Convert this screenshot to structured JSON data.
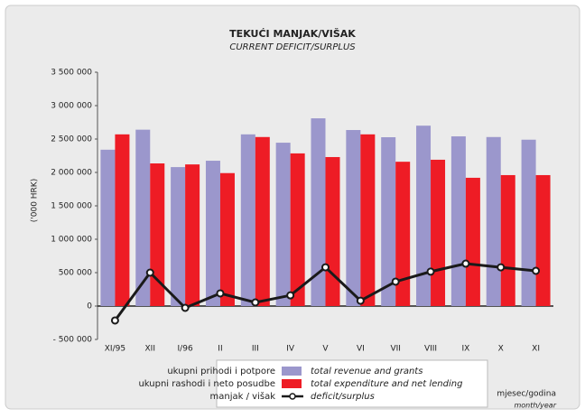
{
  "chart_data": {
    "type": "bar_line",
    "title": "TEKUĆI MANJAK/VIŠAK",
    "subtitle": "CURRENT DEFICIT/SURPLUS",
    "y_label": "('000 HRK)",
    "x_label": "mjesec/godina",
    "x_label_en": "month/year",
    "categories": [
      "XI/95",
      "XII",
      "I/96",
      "II",
      "III",
      "IV",
      "V",
      "VI",
      "VII",
      "VIII",
      "IX",
      "X",
      "XI"
    ],
    "series": [
      {
        "name": "total revenue and grants",
        "label_hr": "ukupni prihodi i potpore",
        "color": "#9b97cc",
        "kind": "bar",
        "values": [
          2340000,
          2640000,
          2080000,
          2175000,
          2570000,
          2445000,
          2810000,
          2635000,
          2527000,
          2700000,
          2540000,
          2530000,
          2490000
        ]
      },
      {
        "name": "total expenditure and net lending",
        "label_hr": "ukupni rashodi i neto posudbe",
        "color": "#ee1c25",
        "kind": "bar",
        "values": [
          2570000,
          2135000,
          2120000,
          1990000,
          2530000,
          2285000,
          2230000,
          2570000,
          2160000,
          2190000,
          1920000,
          1960000,
          1960000
        ]
      },
      {
        "name": "deficit/surplus",
        "label_hr": "manjak / višak",
        "color": "#1a1a1a",
        "kind": "line",
        "values": [
          -216000,
          500000,
          -27000,
          190000,
          54000,
          160000,
          580000,
          80000,
          365000,
          515000,
          635000,
          580000,
          527000
        ]
      }
    ],
    "ylim": [
      -500000,
      3500000
    ],
    "yticks": [
      {
        "value": -500000,
        "label": "- 500 000"
      },
      0,
      {
        "value": 500000,
        "label": "500 000"
      },
      {
        "value": 1000000,
        "label": "1 000 000"
      },
      {
        "value": 1500000,
        "label": "1 500 000"
      },
      {
        "value": 2000000,
        "label": "2 000 000"
      },
      {
        "value": 2500000,
        "label": "2 500 000"
      },
      {
        "value": 3000000,
        "label": "3 000 000"
      },
      {
        "value": 3500000,
        "label": "3 500 000"
      }
    ],
    "grid": false
  }
}
